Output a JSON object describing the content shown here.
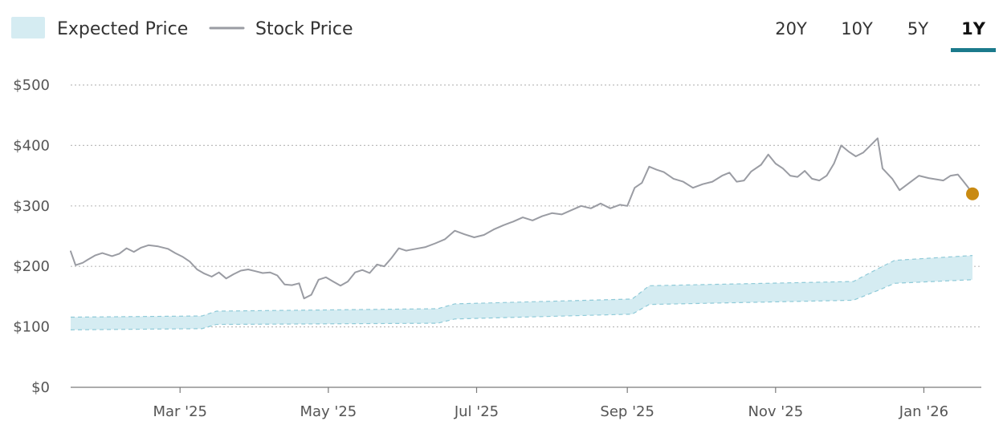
{
  "legend": {
    "expected_label": "Expected Price",
    "stock_label": "Stock Price"
  },
  "range_tabs": [
    {
      "label": "20Y",
      "active": false
    },
    {
      "label": "10Y",
      "active": false
    },
    {
      "label": "5Y",
      "active": false
    },
    {
      "label": "1Y",
      "active": true
    }
  ],
  "colors": {
    "band_fill": "#d5ecf2",
    "band_edge": "#8fcad8",
    "stock_line": "#9a9ca3",
    "current_dot": "#c98a12",
    "active_tab": "#1b7a8c",
    "grid": "#bdbdbd",
    "axis": "#7a7a7a"
  },
  "chart_data": {
    "type": "line",
    "title": "",
    "xlabel": "",
    "ylabel": "",
    "x_range": [
      "2025-01-15",
      "2026-01-21"
    ],
    "ylim": [
      0,
      500
    ],
    "yticks": [
      0,
      100,
      200,
      300,
      400,
      500
    ],
    "ytick_labels": [
      "$0",
      "$100",
      "$200",
      "$300",
      "$400",
      "$500"
    ],
    "xticks": [
      {
        "date": "2025-03-01",
        "label": "Mar '25"
      },
      {
        "date": "2025-05-01",
        "label": "May '25"
      },
      {
        "date": "2025-07-01",
        "label": "Jul '25"
      },
      {
        "date": "2025-09-01",
        "label": "Sep '25"
      },
      {
        "date": "2025-11-01",
        "label": "Nov '25"
      },
      {
        "date": "2026-01-01",
        "label": "Jan '26"
      }
    ],
    "grid": true,
    "series": [
      {
        "name": "Stock Price",
        "type": "line",
        "points": [
          [
            "2025-01-15",
            225
          ],
          [
            "2025-01-17",
            202
          ],
          [
            "2025-01-20",
            206
          ],
          [
            "2025-01-22",
            211
          ],
          [
            "2025-01-25",
            218
          ],
          [
            "2025-01-28",
            222
          ],
          [
            "2025-02-01",
            217
          ],
          [
            "2025-02-04",
            221
          ],
          [
            "2025-02-07",
            230
          ],
          [
            "2025-02-10",
            224
          ],
          [
            "2025-02-13",
            231
          ],
          [
            "2025-02-16",
            235
          ],
          [
            "2025-02-20",
            233
          ],
          [
            "2025-02-24",
            229
          ],
          [
            "2025-02-27",
            222
          ],
          [
            "2025-03-02",
            216
          ],
          [
            "2025-03-05",
            208
          ],
          [
            "2025-03-08",
            195
          ],
          [
            "2025-03-11",
            188
          ],
          [
            "2025-03-14",
            183
          ],
          [
            "2025-03-17",
            190
          ],
          [
            "2025-03-20",
            180
          ],
          [
            "2025-03-23",
            187
          ],
          [
            "2025-03-26",
            193
          ],
          [
            "2025-03-29",
            195
          ],
          [
            "2025-04-01",
            192
          ],
          [
            "2025-04-04",
            189
          ],
          [
            "2025-04-07",
            190
          ],
          [
            "2025-04-10",
            185
          ],
          [
            "2025-04-13",
            170
          ],
          [
            "2025-04-16",
            169
          ],
          [
            "2025-04-19",
            172
          ],
          [
            "2025-04-21",
            147
          ],
          [
            "2025-04-24",
            153
          ],
          [
            "2025-04-27",
            178
          ],
          [
            "2025-04-30",
            182
          ],
          [
            "2025-05-03",
            175
          ],
          [
            "2025-05-06",
            168
          ],
          [
            "2025-05-09",
            175
          ],
          [
            "2025-05-12",
            190
          ],
          [
            "2025-05-15",
            194
          ],
          [
            "2025-05-18",
            189
          ],
          [
            "2025-05-21",
            203
          ],
          [
            "2025-05-24",
            200
          ],
          [
            "2025-05-27",
            214
          ],
          [
            "2025-05-30",
            230
          ],
          [
            "2025-06-02",
            226
          ],
          [
            "2025-06-06",
            229
          ],
          [
            "2025-06-10",
            232
          ],
          [
            "2025-06-14",
            238
          ],
          [
            "2025-06-18",
            245
          ],
          [
            "2025-06-22",
            259
          ],
          [
            "2025-06-26",
            253
          ],
          [
            "2025-06-30",
            248
          ],
          [
            "2025-07-04",
            252
          ],
          [
            "2025-07-08",
            261
          ],
          [
            "2025-07-12",
            268
          ],
          [
            "2025-07-16",
            274
          ],
          [
            "2025-07-20",
            281
          ],
          [
            "2025-07-24",
            276
          ],
          [
            "2025-07-28",
            283
          ],
          [
            "2025-08-01",
            288
          ],
          [
            "2025-08-05",
            286
          ],
          [
            "2025-08-09",
            293
          ],
          [
            "2025-08-13",
            300
          ],
          [
            "2025-08-17",
            296
          ],
          [
            "2025-08-21",
            304
          ],
          [
            "2025-08-25",
            296
          ],
          [
            "2025-08-29",
            302
          ],
          [
            "2025-09-01",
            300
          ],
          [
            "2025-09-04",
            330
          ],
          [
            "2025-09-07",
            338
          ],
          [
            "2025-09-10",
            365
          ],
          [
            "2025-09-13",
            360
          ],
          [
            "2025-09-16",
            356
          ],
          [
            "2025-09-20",
            345
          ],
          [
            "2025-09-24",
            340
          ],
          [
            "2025-09-28",
            330
          ],
          [
            "2025-10-02",
            336
          ],
          [
            "2025-10-06",
            340
          ],
          [
            "2025-10-10",
            350
          ],
          [
            "2025-10-13",
            355
          ],
          [
            "2025-10-16",
            340
          ],
          [
            "2025-10-19",
            342
          ],
          [
            "2025-10-22",
            357
          ],
          [
            "2025-10-26",
            368
          ],
          [
            "2025-10-29",
            385
          ],
          [
            "2025-11-01",
            370
          ],
          [
            "2025-11-04",
            362
          ],
          [
            "2025-11-07",
            350
          ],
          [
            "2025-11-10",
            348
          ],
          [
            "2025-11-13",
            358
          ],
          [
            "2025-11-16",
            345
          ],
          [
            "2025-11-19",
            342
          ],
          [
            "2025-11-22",
            350
          ],
          [
            "2025-11-25",
            370
          ],
          [
            "2025-11-28",
            400
          ],
          [
            "2025-12-01",
            390
          ],
          [
            "2025-12-04",
            382
          ],
          [
            "2025-12-07",
            388
          ],
          [
            "2025-12-10",
            400
          ],
          [
            "2025-12-13",
            412
          ],
          [
            "2025-12-15",
            362
          ],
          [
            "2025-12-19",
            345
          ],
          [
            "2025-12-22",
            326
          ],
          [
            "2025-12-26",
            338
          ],
          [
            "2025-12-30",
            350
          ],
          [
            "2026-01-03",
            346
          ],
          [
            "2026-01-06",
            344
          ],
          [
            "2026-01-09",
            342
          ],
          [
            "2026-01-12",
            350
          ],
          [
            "2026-01-15",
            352
          ],
          [
            "2026-01-17",
            342
          ],
          [
            "2026-01-19",
            332
          ],
          [
            "2026-01-21",
            320
          ]
        ]
      },
      {
        "name": "Expected Price",
        "type": "area-range",
        "upper": [
          [
            "2025-01-15",
            116
          ],
          [
            "2025-03-10",
            118
          ],
          [
            "2025-03-16",
            126
          ],
          [
            "2025-06-15",
            130
          ],
          [
            "2025-06-22",
            138
          ],
          [
            "2025-09-03",
            146
          ],
          [
            "2025-09-10",
            168
          ],
          [
            "2025-12-03",
            175
          ],
          [
            "2025-12-13",
            196
          ],
          [
            "2025-12-20",
            210
          ],
          [
            "2026-01-21",
            218
          ]
        ],
        "lower": [
          [
            "2025-01-15",
            95
          ],
          [
            "2025-03-10",
            97
          ],
          [
            "2025-03-16",
            104
          ],
          [
            "2025-06-15",
            106
          ],
          [
            "2025-06-22",
            113
          ],
          [
            "2025-09-03",
            121
          ],
          [
            "2025-09-10",
            137
          ],
          [
            "2025-12-03",
            144
          ],
          [
            "2025-12-13",
            160
          ],
          [
            "2025-12-20",
            172
          ],
          [
            "2026-01-21",
            178
          ]
        ]
      }
    ],
    "current_point": {
      "date": "2026-01-21",
      "value": 320
    }
  }
}
